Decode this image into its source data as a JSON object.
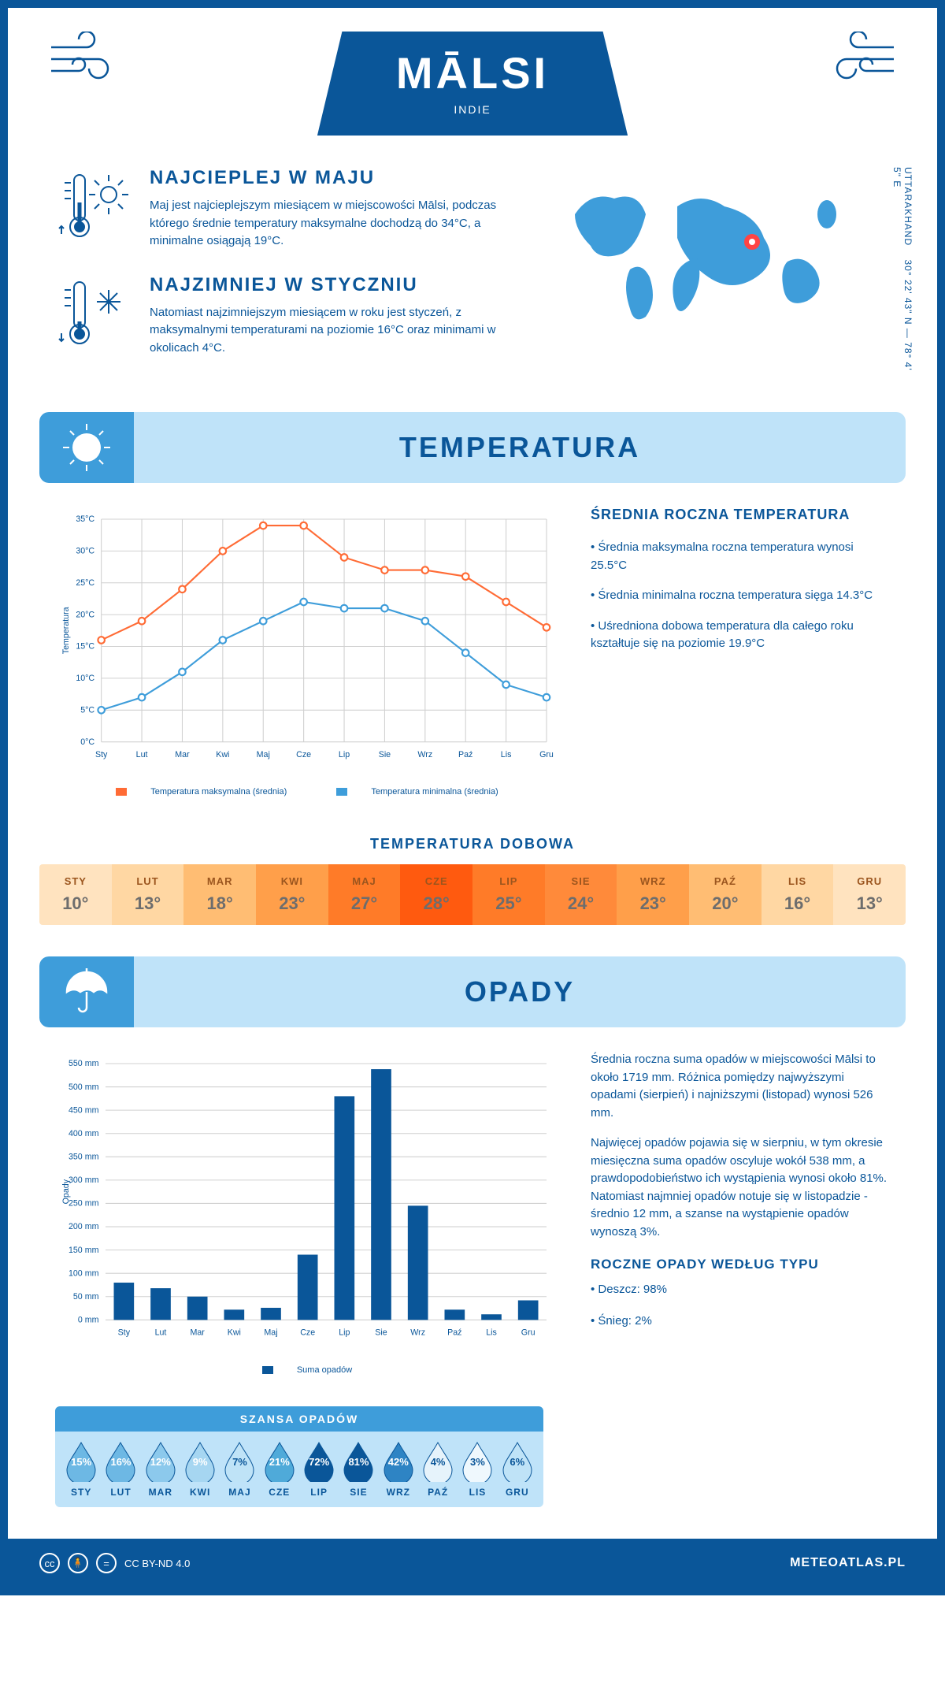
{
  "header": {
    "title": "MĀLSI",
    "subtitle": "INDIE"
  },
  "coords": {
    "line1": "30° 22' 43\" N — 78° 4' 5\" E",
    "region": "UTTARAKHAND"
  },
  "hot": {
    "title": "NAJCIEPLEJ W MAJU",
    "text": "Maj jest najcieplejszym miesiącem w miejscowości Mālsi, podczas którego średnie temperatury maksymalne dochodzą do 34°C, a minimalne osiągają 19°C."
  },
  "cold": {
    "title": "NAJZIMNIEJ W STYCZNIU",
    "text": "Natomiast najzimniejszym miesiącem w roku jest styczeń, z maksymalnymi temperaturami na poziomie 16°C oraz minimami w okolicach 4°C."
  },
  "sections": {
    "temp": "TEMPERATURA",
    "rain": "OPADY"
  },
  "months": [
    "Sty",
    "Lut",
    "Mar",
    "Kwi",
    "Maj",
    "Cze",
    "Lip",
    "Sie",
    "Wrz",
    "Paź",
    "Lis",
    "Gru"
  ],
  "months_upper": [
    "STY",
    "LUT",
    "MAR",
    "KWI",
    "MAJ",
    "CZE",
    "LIP",
    "SIE",
    "WRZ",
    "PAŹ",
    "LIS",
    "GRU"
  ],
  "temp_chart": {
    "type": "line",
    "ylabel": "Temperatura",
    "ylim": [
      0,
      35
    ],
    "ytick_step": 5,
    "series": {
      "max": {
        "label": "Temperatura maksymalna (średnia)",
        "color": "#ff6b35",
        "values": [
          16,
          19,
          24,
          30,
          34,
          34,
          29,
          27,
          27,
          26,
          22,
          18
        ]
      },
      "min": {
        "label": "Temperatura minimalna (średnia)",
        "color": "#3e9dda",
        "values": [
          5,
          7,
          11,
          16,
          19,
          22,
          21,
          21,
          19,
          14,
          9,
          7
        ]
      }
    },
    "grid_color": "#d8d8d8",
    "background": "#ffffff",
    "line_width": 2,
    "marker_size": 4
  },
  "temp_side": {
    "title": "ŚREDNIA ROCZNA TEMPERATURA",
    "bullets": [
      "• Średnia maksymalna roczna temperatura wynosi 25.5°C",
      "• Średnia minimalna roczna temperatura sięga 14.3°C",
      "• Uśredniona dobowa temperatura dla całego roku kształtuje się na poziomie 19.9°C"
    ]
  },
  "dobowa": {
    "title": "TEMPERATURA DOBOWA",
    "values": [
      "10°",
      "13°",
      "18°",
      "23°",
      "27°",
      "28°",
      "25°",
      "24°",
      "23°",
      "20°",
      "16°",
      "13°"
    ],
    "bg_colors": [
      "#ffe3bf",
      "#ffd7a3",
      "#ffbd73",
      "#ff9f4a",
      "#ff7b28",
      "#ff5a0f",
      "#ff7b28",
      "#ff8a3a",
      "#ff9f4a",
      "#ffbd73",
      "#ffd7a3",
      "#ffe3bf"
    ]
  },
  "rain_chart": {
    "type": "bar",
    "ylabel": "Opady",
    "ylim": [
      0,
      550
    ],
    "ytick_step": 50,
    "values": [
      80,
      68,
      50,
      22,
      26,
      140,
      480,
      538,
      245,
      22,
      12,
      42
    ],
    "bar_color": "#0a5699",
    "legend": "Suma opadów",
    "grid_color": "#d8d8d8"
  },
  "rain_side": {
    "p1": "Średnia roczna suma opadów w miejscowości Mālsi to około 1719 mm. Różnica pomiędzy najwyższymi opadami (sierpień) i najniższymi (listopad) wynosi 526 mm.",
    "p2": "Najwięcej opadów pojawia się w sierpniu, w tym okresie miesięczna suma opadów oscyluje wokół 538 mm, a prawdopodobieństwo ich wystąpienia wynosi około 81%. Natomiast najmniej opadów notuje się w listopadzie - średnio 12 mm, a szanse na wystąpienie opadów wynoszą 3%."
  },
  "rain_chance": {
    "title": "SZANSA OPADÓW",
    "values": [
      "15%",
      "16%",
      "12%",
      "9%",
      "7%",
      "21%",
      "72%",
      "81%",
      "42%",
      "4%",
      "3%",
      "6%"
    ],
    "fill_colors": [
      "#6db8e4",
      "#6db8e4",
      "#8cc9ec",
      "#a6d6f1",
      "#bfe3f7",
      "#4faad9",
      "#0a5699",
      "#0a5699",
      "#2e84c4",
      "#e6f3fb",
      "#eff8fd",
      "#bfe3f7"
    ],
    "text_colors": [
      "#fff",
      "#fff",
      "#fff",
      "#fff",
      "#0a5699",
      "#fff",
      "#fff",
      "#fff",
      "#fff",
      "#0a5699",
      "#0a5699",
      "#0a5699"
    ]
  },
  "rain_type": {
    "title": "ROCZNE OPADY WEDŁUG TYPU",
    "lines": [
      "• Deszcz: 98%",
      "• Śnieg: 2%"
    ]
  },
  "footer": {
    "license": "CC BY-ND 4.0",
    "site": "METEOATLAS.PL"
  }
}
